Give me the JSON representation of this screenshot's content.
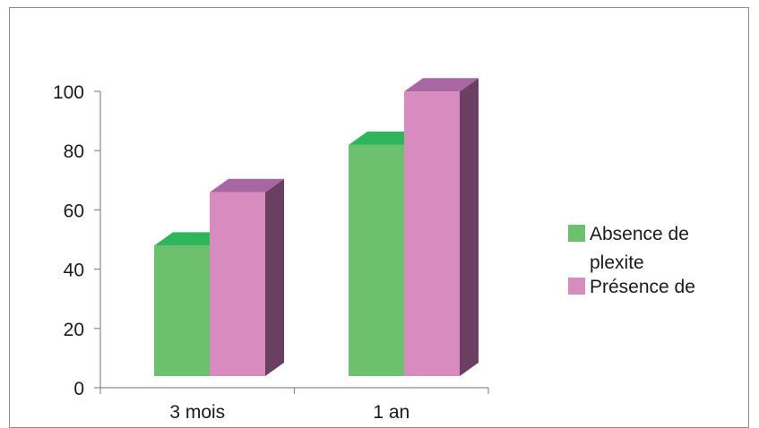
{
  "chart_data": {
    "type": "bar",
    "style": "3d-clustered-column",
    "categories": [
      "3 mois",
      "1 an"
    ],
    "series": [
      {
        "name": "Absence de plexite",
        "values": [
          44,
          78
        ],
        "color": "#6cc06e",
        "top_color": "#2fb55a",
        "side_color": "#2e8b44"
      },
      {
        "name": "Présence de",
        "values": [
          62,
          96
        ],
        "color": "#d88bbf",
        "top_color": "#a866a2",
        "side_color": "#6b3f62"
      }
    ],
    "title": "",
    "xlabel": "",
    "ylabel": "",
    "ylim": [
      0,
      100
    ],
    "yticks": [
      0,
      20,
      40,
      60,
      80,
      100
    ],
    "grid": false,
    "legend_position": "right"
  },
  "legend": {
    "items": [
      {
        "line1": "Absence de",
        "line2": "plexite"
      },
      {
        "line1": "Présence de",
        "line2": ""
      }
    ]
  }
}
